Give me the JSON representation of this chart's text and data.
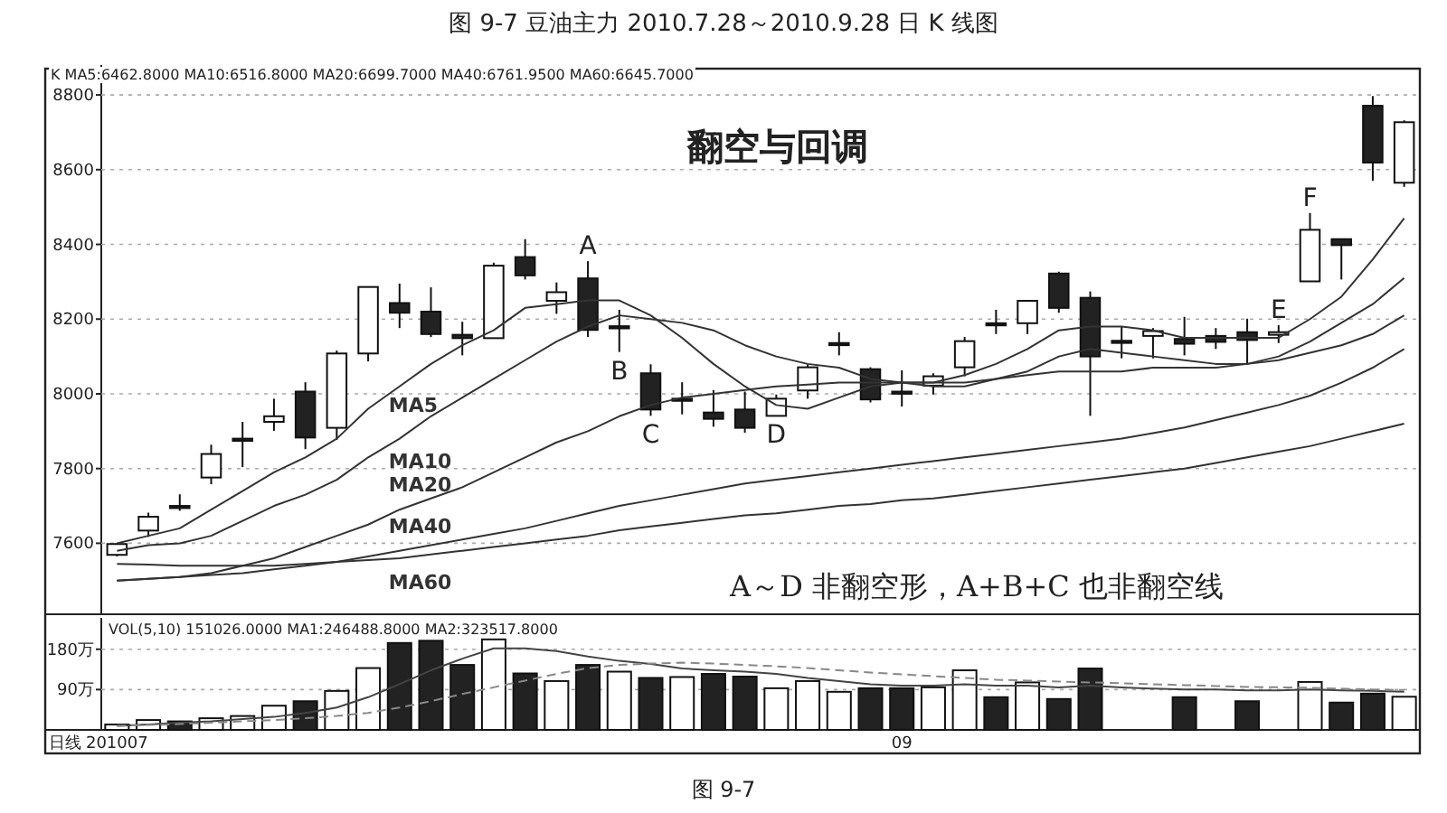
{
  "chart_data": [
    {
      "type": "candlestick",
      "title": "图 9-7  豆油主力 2010.7.28～2010.9.28 日 K 线图",
      "categories": [
        null,
        null,
        null,
        null,
        null,
        null,
        null,
        null,
        null,
        null,
        null,
        null,
        null,
        null,
        null,
        null,
        null,
        null,
        null,
        null,
        null,
        null,
        null,
        null,
        null,
        null,
        null,
        null,
        null,
        null,
        null,
        null,
        null,
        null,
        null,
        null,
        null,
        null,
        null,
        null,
        null,
        null
      ],
      "ohlc": [
        [
          7569,
          7601,
          7565,
          7598
        ],
        [
          7634,
          7682,
          7617,
          7671
        ],
        [
          7700,
          7731,
          7687,
          7695
        ],
        [
          7776,
          7864,
          7758,
          7839
        ],
        [
          7880,
          7925,
          7804,
          7880
        ],
        [
          7925,
          7987,
          7901,
          7940
        ],
        [
          8006,
          8031,
          7852,
          7883
        ],
        [
          7909,
          8116,
          7877,
          8108
        ],
        [
          8108,
          8286,
          8087,
          8286
        ],
        [
          8243,
          8295,
          8176,
          8217
        ],
        [
          8220,
          8285,
          8152,
          8160
        ],
        [
          8158,
          8193,
          8103,
          8149
        ],
        [
          8149,
          8351,
          8149,
          8343
        ],
        [
          8366,
          8414,
          8306,
          8317
        ],
        [
          8249,
          8298,
          8214,
          8272
        ],
        [
          8309,
          8355,
          8152,
          8171
        ],
        [
          8181,
          8225,
          8112,
          8181
        ],
        [
          8055,
          8079,
          7941,
          7958
        ],
        [
          7987,
          8031,
          7945,
          7987
        ],
        [
          7950,
          8010,
          7912,
          7933
        ],
        [
          7958,
          8006,
          7896,
          7909
        ],
        [
          7941,
          7998,
          7941,
          7987
        ],
        [
          8009,
          8079,
          7987,
          8071
        ],
        [
          8136,
          8165,
          8103,
          8136
        ],
        [
          8066,
          8071,
          7977,
          7985
        ],
        [
          8006,
          8063,
          7966,
          8006
        ],
        [
          8022,
          8055,
          7998,
          8047
        ],
        [
          8071,
          8152,
          8047,
          8141
        ],
        [
          8189,
          8225,
          8160,
          8189
        ],
        [
          8189,
          8249,
          8160,
          8249
        ],
        [
          8322,
          8327,
          8217,
          8230
        ],
        [
          8257,
          8274,
          7941,
          8100
        ],
        [
          8142,
          8181,
          8095,
          8142
        ],
        [
          8155,
          8176,
          8095,
          8168
        ],
        [
          8147,
          8206,
          8103,
          8134
        ],
        [
          8155,
          8176,
          8120,
          8139
        ],
        [
          8165,
          8201,
          8079,
          8144
        ],
        [
          8158,
          8184,
          8136,
          8165
        ],
        [
          8301,
          8484,
          8301,
          8439
        ],
        [
          8414,
          8414,
          8306,
          8398
        ],
        [
          8771,
          8797,
          8570,
          8619
        ],
        [
          8565,
          8732,
          8554,
          8727
        ]
      ],
      "series": [
        {
          "type": "line",
          "name": "MA5",
          "color": "#333333",
          "values": [
            7600,
            7620,
            7640,
            7690,
            7740,
            7790,
            7830,
            7880,
            7960,
            8020,
            8080,
            8130,
            8170,
            8230,
            8240,
            8250,
            8250,
            8210,
            8150,
            8080,
            8020,
            7970,
            7960,
            7990,
            8020,
            8030,
            8030,
            8050,
            8080,
            8120,
            8170,
            8180,
            8180,
            8170,
            8150,
            8150,
            8150,
            8150,
            8200,
            8260,
            8360,
            8470
          ]
        },
        {
          "type": "line",
          "name": "MA10",
          "color": "#333333",
          "values": [
            7580,
            7595,
            7600,
            7620,
            7660,
            7700,
            7730,
            7770,
            7830,
            7880,
            7940,
            7990,
            8040,
            8090,
            8140,
            8180,
            8210,
            8200,
            8190,
            8170,
            8130,
            8100,
            8080,
            8070,
            8040,
            8030,
            8020,
            8020,
            8040,
            8060,
            8100,
            8120,
            8110,
            8100,
            8090,
            8080,
            8080,
            8100,
            8140,
            8190,
            8240,
            8310
          ]
        },
        {
          "type": "line",
          "name": "MA20",
          "color": "#333333",
          "values": [
            7500,
            7505,
            7510,
            7520,
            7540,
            7560,
            7590,
            7620,
            7650,
            7690,
            7720,
            7750,
            7790,
            7830,
            7870,
            7900,
            7940,
            7970,
            7990,
            8000,
            8010,
            8020,
            8025,
            8030,
            8030,
            8030,
            8030,
            8030,
            8040,
            8050,
            8060,
            8060,
            8060,
            8070,
            8070,
            8070,
            8080,
            8090,
            8110,
            8130,
            8160,
            8210
          ]
        },
        {
          "type": "line",
          "name": "MA40",
          "color": "#333333",
          "values": [
            7500,
            7505,
            7510,
            7515,
            7520,
            7530,
            7540,
            7550,
            7565,
            7580,
            7595,
            7610,
            7625,
            7640,
            7660,
            7680,
            7700,
            7715,
            7730,
            7745,
            7760,
            7770,
            7780,
            7790,
            7800,
            7810,
            7820,
            7830,
            7840,
            7850,
            7860,
            7870,
            7880,
            7895,
            7910,
            7930,
            7950,
            7970,
            7995,
            8030,
            8070,
            8120
          ]
        },
        {
          "type": "line",
          "name": "MA60",
          "color": "#333333",
          "values": [
            7545,
            7543,
            7540,
            7540,
            7540,
            7540,
            7545,
            7550,
            7555,
            7560,
            7570,
            7580,
            7590,
            7600,
            7610,
            7620,
            7635,
            7645,
            7655,
            7665,
            7675,
            7680,
            7690,
            7700,
            7705,
            7715,
            7720,
            7730,
            7740,
            7750,
            7760,
            7770,
            7780,
            7790,
            7800,
            7815,
            7830,
            7845,
            7860,
            7880,
            7900,
            7920
          ]
        }
      ],
      "ylim": [
        7410,
        8880
      ],
      "yticks": [
        7600,
        7800,
        8000,
        8200,
        8400,
        8600,
        8800
      ],
      "grid": "y",
      "tick_labels": "y",
      "annotations": [
        "K  MA5:6462.8000 MA10:6516.8000 MA20:6699.7000 MA40:6761.9500 MA60:6645.7000",
        "翻空与回调",
        "A～D 非翻空形，A+B+C 也非翻空线",
        "A",
        "B",
        "C",
        "D",
        "E",
        "F"
      ]
    },
    {
      "type": "bar",
      "categories": [
        "201007",
        null,
        null,
        null,
        null,
        null,
        null,
        null,
        null,
        null,
        null,
        null,
        null,
        null,
        null,
        null,
        null,
        null,
        null,
        null,
        null,
        null,
        null,
        null,
        null,
        "09",
        null,
        null,
        null,
        null,
        null,
        null,
        null,
        null,
        null,
        null,
        null,
        null,
        null,
        null,
        null,
        null
      ],
      "series": [
        {
          "type": "bar",
          "values": [
            12,
            22,
            19,
            26,
            31,
            54,
            64,
            87,
            138,
            194,
            199,
            145,
            202,
            126,
            109,
            145,
            130,
            116,
            118,
            125,
            119,
            93,
            109,
            85,
            93,
            93,
            95,
            133,
            73,
            106,
            69,
            137,
            null,
            null,
            73,
            null,
            64,
            null,
            107,
            61,
            81,
            74
          ],
          "colors": [
            "#ffffff",
            "#ffffff",
            "#222222",
            "#ffffff",
            "#ffffff",
            "#ffffff",
            "#222222",
            "#ffffff",
            "#ffffff",
            "#222222",
            "#222222",
            "#222222",
            "#ffffff",
            "#222222",
            "#ffffff",
            "#222222",
            "#ffffff",
            "#222222",
            "#ffffff",
            "#222222",
            "#222222",
            "#ffffff",
            "#ffffff",
            "#ffffff",
            "#222222",
            "#222222",
            "#ffffff",
            "#ffffff",
            "#222222",
            "#ffffff",
            "#222222",
            "#222222",
            null,
            null,
            "#222222",
            null,
            "#222222",
            null,
            "#ffffff",
            "#222222",
            "#222222",
            "#ffffff"
          ]
        },
        {
          "type": "line",
          "color": "#444444",
          "values": [
            9,
            12,
            16,
            19,
            24,
            29,
            38,
            50,
            73,
            102,
            133,
            159,
            182,
            182,
            176,
            164,
            154,
            147,
            137,
            133,
            130,
            125,
            116,
            109,
            102,
            99,
            99,
            102,
            99,
            99,
            95,
            99,
            95,
            92,
            90,
            90,
            88,
            88,
            90,
            88,
            87,
            85
          ]
        },
        {
          "type": "line",
          "color": "#888888",
          "line_style": "dashed",
          "values": [
            9,
            11,
            13,
            16,
            19,
            22,
            26,
            31,
            38,
            50,
            64,
            80,
            95,
            110,
            125,
            138,
            145,
            148,
            150,
            148,
            145,
            142,
            138,
            133,
            128,
            124,
            120,
            116,
            112,
            110,
            108,
            106,
            104,
            102,
            100,
            98,
            96,
            95,
            94,
            92,
            90,
            89
          ]
        }
      ],
      "ylim": [
        0,
        250
      ],
      "yticks": [
        {
          "value": 90,
          "label": "90万"
        },
        {
          "value": 180,
          "label": "180万"
        }
      ],
      "grid": "y",
      "annotations": [
        "VOL(5,10) 151026.0000 MA1:246488.8000 MA2:323517.8000",
        "日线",
        "图 9-7"
      ]
    }
  ]
}
